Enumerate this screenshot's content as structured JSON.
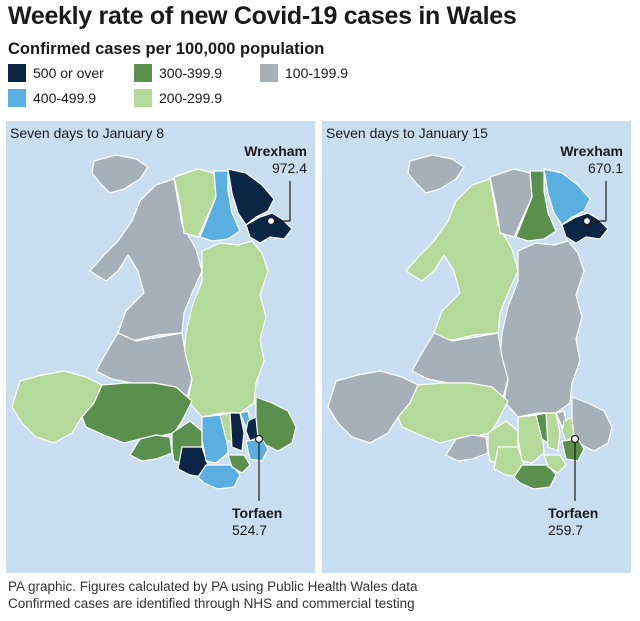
{
  "title": "Weekly rate of new Covid-19 cases in Wales",
  "subtitle": "Confirmed cases per 100,000 population",
  "legend": [
    {
      "label": "500 or over",
      "color": "#0b2545"
    },
    {
      "label": "400-499.9",
      "color": "#5aaee0"
    },
    {
      "label": "300-399.9",
      "color": "#5a8f4e"
    },
    {
      "label": "200-299.9",
      "color": "#b5d99a"
    },
    {
      "label": "100-199.9",
      "color": "#a6b0b8"
    }
  ],
  "maps": [
    {
      "title": "Seven days to January 8",
      "wrexham": {
        "name": "Wrexham",
        "value": "972.4"
      },
      "torfaen": {
        "name": "Torfaen",
        "value": "524.7"
      }
    },
    {
      "title": "Seven days to January 15",
      "wrexham": {
        "name": "Wrexham",
        "value": "670.1"
      },
      "torfaen": {
        "name": "Torfaen",
        "value": "259.7"
      }
    }
  ],
  "footer": {
    "line1": "PA graphic. Figures calculated by PA using Public Health Wales data",
    "line2": "Confirmed cases are identified through NHS and commercial testing"
  }
}
